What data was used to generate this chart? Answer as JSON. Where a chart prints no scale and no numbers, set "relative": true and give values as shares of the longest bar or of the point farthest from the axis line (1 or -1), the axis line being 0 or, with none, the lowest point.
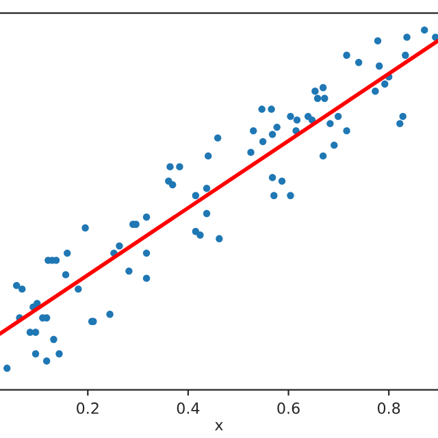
{
  "chart_data": {
    "type": "scatter",
    "xlabel": "x",
    "relative": true,
    "xlim": [
      0.025,
      0.898
    ],
    "xticks": [
      0.2,
      0.4,
      0.6,
      0.8
    ],
    "grid": false,
    "legend": false,
    "series": [
      {
        "marker": "circle",
        "color": "#1f77b4",
        "x": [
          0.039,
          0.058,
          0.069,
          0.064,
          0.085,
          0.096,
          0.096,
          0.091,
          0.099,
          0.11,
          0.118,
          0.118,
          0.132,
          0.143,
          0.121,
          0.129,
          0.137,
          0.159,
          0.156,
          0.181,
          0.195,
          0.208,
          0.211,
          0.244,
          0.252,
          0.263,
          0.282,
          0.29,
          0.296,
          0.317,
          0.317,
          0.317,
          0.415,
          0.424,
          0.437,
          0.462,
          0.364,
          0.383,
          0.361,
          0.369,
          0.44,
          0.459,
          0.415,
          0.437,
          0.525,
          0.547,
          0.566,
          0.53,
          0.549,
          0.568,
          0.577,
          0.604,
          0.617,
          0.615,
          0.639,
          0.647,
          0.653,
          0.669,
          0.658,
          0.672,
          0.683,
          0.699,
          0.669,
          0.691,
          0.716,
          0.568,
          0.587,
          0.571,
          0.604,
          0.716,
          0.74,
          0.778,
          0.781,
          0.773,
          0.792,
          0.8,
          0.822,
          0.828,
          0.833,
          0.836,
          0.871,
          0.893
        ],
        "values": [
          0.06,
          0.29,
          0.28,
          0.2,
          0.16,
          0.16,
          0.1,
          0.23,
          0.24,
          0.2,
          0.2,
          0.08,
          0.14,
          0.1,
          0.36,
          0.36,
          0.36,
          0.38,
          0.32,
          0.28,
          0.45,
          0.19,
          0.19,
          0.21,
          0.38,
          0.4,
          0.33,
          0.46,
          0.46,
          0.48,
          0.38,
          0.31,
          0.44,
          0.43,
          0.49,
          0.42,
          0.62,
          0.62,
          0.58,
          0.57,
          0.65,
          0.7,
          0.54,
          0.56,
          0.66,
          0.78,
          0.78,
          0.72,
          0.69,
          0.71,
          0.73,
          0.76,
          0.75,
          0.72,
          0.76,
          0.75,
          0.83,
          0.84,
          0.81,
          0.81,
          0.74,
          0.76,
          0.65,
          0.68,
          0.72,
          0.59,
          0.58,
          0.54,
          0.54,
          0.93,
          0.91,
          0.97,
          0.9,
          0.83,
          0.85,
          0.87,
          0.74,
          0.76,
          0.93,
          0.98,
          1.0,
          0.98
        ]
      },
      {
        "type": "line",
        "marker": "none",
        "color": "#ff0000",
        "x": [
          0.025,
          0.898
        ],
        "values": [
          0.156,
          0.97
        ]
      }
    ]
  }
}
